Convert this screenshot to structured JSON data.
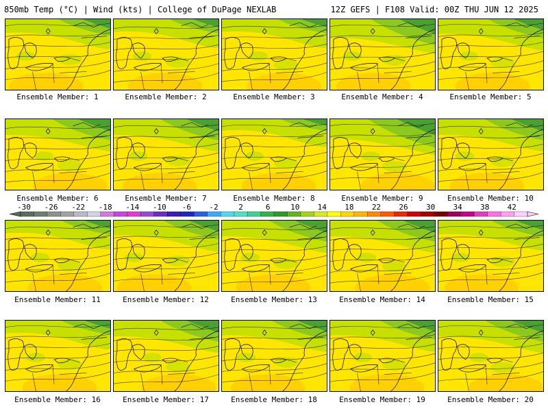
{
  "header": {
    "title_left": "850mb Temp (°C) | Wind (kts) | College of DuPage NEXLAB",
    "title_right": "12Z GEFS | F108 Valid: 00Z THU JUN 12 2025"
  },
  "panels": [
    {
      "label": "Ensemble Member: 1",
      "green_fraction": 0.35
    },
    {
      "label": "Ensemble Member: 2",
      "green_fraction": 0.3
    },
    {
      "label": "Ensemble Member: 3",
      "green_fraction": 0.3
    },
    {
      "label": "Ensemble Member: 4",
      "green_fraction": 0.55
    },
    {
      "label": "Ensemble Member: 5",
      "green_fraction": 0.4
    },
    {
      "label": "Ensemble Member: 6",
      "green_fraction": 0.45
    },
    {
      "label": "Ensemble Member: 7",
      "green_fraction": 0.45
    },
    {
      "label": "Ensemble Member: 8",
      "green_fraction": 0.25
    },
    {
      "label": "Ensemble Member: 9",
      "green_fraction": 0.6
    },
    {
      "label": "Ensemble Member: 10",
      "green_fraction": 0.45
    },
    {
      "label": "Ensemble Member: 11",
      "green_fraction": 0.3
    },
    {
      "label": "Ensemble Member: 12",
      "green_fraction": 0.4
    },
    {
      "label": "Ensemble Member: 13",
      "green_fraction": 0.45
    },
    {
      "label": "Ensemble Member: 14",
      "green_fraction": 0.45
    },
    {
      "label": "Ensemble Member: 15",
      "green_fraction": 0.35
    },
    {
      "label": "Ensemble Member: 16",
      "green_fraction": 0.3
    },
    {
      "label": "Ensemble Member: 17",
      "green_fraction": 0.45
    },
    {
      "label": "Ensemble Member: 18",
      "green_fraction": 0.4
    },
    {
      "label": "Ensemble Member: 19",
      "green_fraction": 0.4
    },
    {
      "label": "Ensemble Member: 20",
      "green_fraction": 0.45
    }
  ],
  "colorbar": {
    "tick_labels": [
      "-30",
      "-26",
      "-22",
      "-18",
      "-14",
      "-10",
      "-6",
      "-2",
      "2",
      "6",
      "10",
      "14",
      "18",
      "22",
      "26",
      "30",
      "34",
      "38",
      "42"
    ],
    "colors": [
      "#5a6e5a",
      "#6f7f6f",
      "#8a968a",
      "#a2a2a2",
      "#b8bcc4",
      "#cfd4e6",
      "#d17ad8",
      "#c847e0",
      "#e23ad5",
      "#9a4ad0",
      "#6a2ec8",
      "#3f1cb4",
      "#1f27c4",
      "#2a5ee8",
      "#3da8ff",
      "#4fd8f0",
      "#4ee0c8",
      "#3fd09a",
      "#33b24c",
      "#2f9a2a",
      "#66b41e",
      "#a6d21c",
      "#d8ea20",
      "#ffff00",
      "#ffd800",
      "#ffb400",
      "#ff8a00",
      "#ff5a00",
      "#f02800",
      "#d40000",
      "#a80000",
      "#7a0000",
      "#a00058",
      "#c8008c",
      "#e040c0",
      "#ff70e0",
      "#ffa0f0",
      "#ffd0ff"
    ]
  },
  "colors": {
    "warm": "#ffe600",
    "mid": "#c8e000",
    "cool": "#8cc81e",
    "cold": "#4aa030",
    "hot": "#ffc800"
  }
}
